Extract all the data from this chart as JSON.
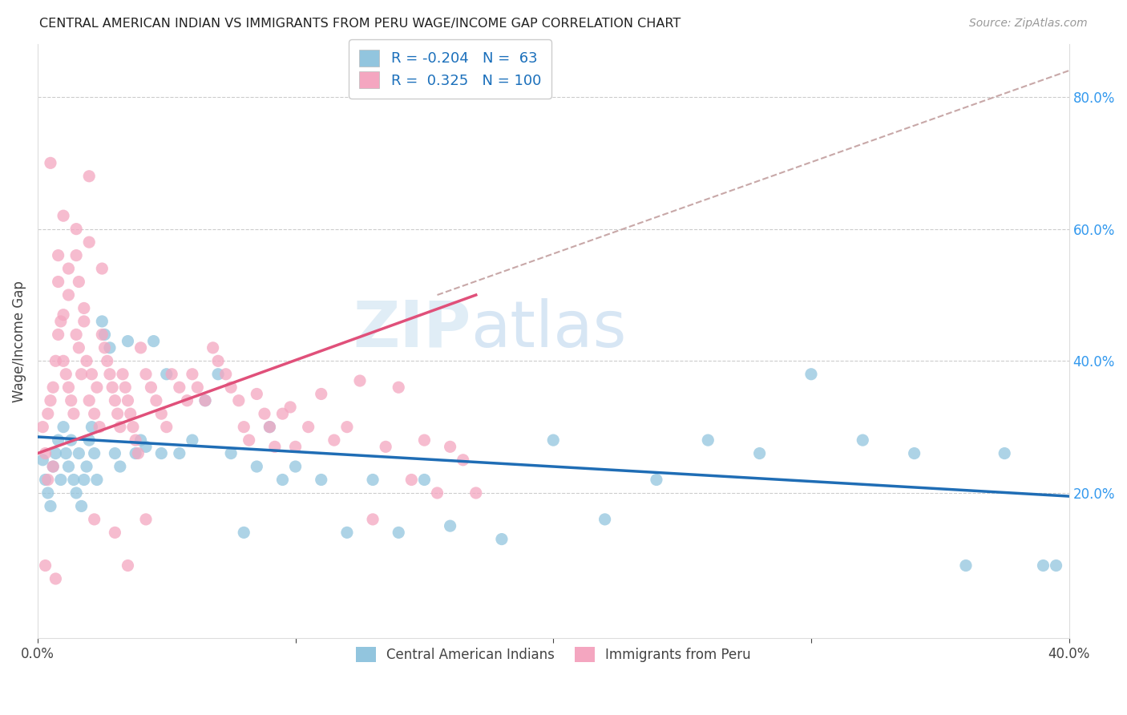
{
  "title": "CENTRAL AMERICAN INDIAN VS IMMIGRANTS FROM PERU WAGE/INCOME GAP CORRELATION CHART",
  "source": "Source: ZipAtlas.com",
  "ylabel": "Wage/Income Gap",
  "right_yticks": [
    "20.0%",
    "40.0%",
    "60.0%",
    "80.0%"
  ],
  "right_ytick_vals": [
    0.2,
    0.4,
    0.6,
    0.8
  ],
  "xlim": [
    0.0,
    0.4
  ],
  "ylim": [
    -0.02,
    0.88
  ],
  "legend_R1": "-0.204",
  "legend_N1": "63",
  "legend_R2": "0.325",
  "legend_N2": "100",
  "color_blue": "#92c5de",
  "color_pink": "#f4a6c0",
  "trendline_blue_color": "#1f6db5",
  "trendline_pink_color": "#e0507a",
  "trendline_dashed_color": "#c8a8a8",
  "watermark_zip": "ZIP",
  "watermark_atlas": "atlas",
  "blue_trendline": [
    0.0,
    0.285,
    0.4,
    0.195
  ],
  "pink_trendline": [
    0.0,
    0.26,
    0.17,
    0.5
  ],
  "dashed_line": [
    0.155,
    0.5,
    0.4,
    0.84
  ],
  "blue_scatter_x": [
    0.002,
    0.003,
    0.004,
    0.005,
    0.006,
    0.007,
    0.008,
    0.009,
    0.01,
    0.011,
    0.012,
    0.013,
    0.014,
    0.015,
    0.016,
    0.017,
    0.018,
    0.019,
    0.02,
    0.021,
    0.022,
    0.023,
    0.025,
    0.026,
    0.028,
    0.03,
    0.032,
    0.035,
    0.038,
    0.04,
    0.042,
    0.045,
    0.048,
    0.05,
    0.055,
    0.06,
    0.065,
    0.07,
    0.075,
    0.08,
    0.085,
    0.09,
    0.095,
    0.1,
    0.11,
    0.12,
    0.13,
    0.14,
    0.15,
    0.16,
    0.18,
    0.2,
    0.22,
    0.24,
    0.26,
    0.28,
    0.3,
    0.32,
    0.34,
    0.36,
    0.375,
    0.39,
    0.395
  ],
  "blue_scatter_y": [
    0.25,
    0.22,
    0.2,
    0.18,
    0.24,
    0.26,
    0.28,
    0.22,
    0.3,
    0.26,
    0.24,
    0.28,
    0.22,
    0.2,
    0.26,
    0.18,
    0.22,
    0.24,
    0.28,
    0.3,
    0.26,
    0.22,
    0.46,
    0.44,
    0.42,
    0.26,
    0.24,
    0.43,
    0.26,
    0.28,
    0.27,
    0.43,
    0.26,
    0.38,
    0.26,
    0.28,
    0.34,
    0.38,
    0.26,
    0.14,
    0.24,
    0.3,
    0.22,
    0.24,
    0.22,
    0.14,
    0.22,
    0.14,
    0.22,
    0.15,
    0.13,
    0.28,
    0.16,
    0.22,
    0.28,
    0.26,
    0.38,
    0.28,
    0.26,
    0.09,
    0.26,
    0.09,
    0.09
  ],
  "pink_scatter_x": [
    0.002,
    0.003,
    0.004,
    0.005,
    0.006,
    0.007,
    0.008,
    0.009,
    0.01,
    0.011,
    0.012,
    0.013,
    0.014,
    0.015,
    0.016,
    0.017,
    0.018,
    0.019,
    0.02,
    0.021,
    0.022,
    0.023,
    0.024,
    0.025,
    0.026,
    0.027,
    0.028,
    0.029,
    0.03,
    0.031,
    0.032,
    0.033,
    0.034,
    0.035,
    0.036,
    0.037,
    0.038,
    0.039,
    0.04,
    0.042,
    0.044,
    0.046,
    0.048,
    0.05,
    0.052,
    0.055,
    0.058,
    0.06,
    0.062,
    0.065,
    0.068,
    0.07,
    0.073,
    0.075,
    0.078,
    0.08,
    0.082,
    0.085,
    0.088,
    0.09,
    0.092,
    0.095,
    0.098,
    0.1,
    0.105,
    0.11,
    0.115,
    0.12,
    0.125,
    0.13,
    0.135,
    0.14,
    0.145,
    0.15,
    0.155,
    0.16,
    0.165,
    0.17,
    0.02,
    0.025,
    0.005,
    0.008,
    0.01,
    0.012,
    0.015,
    0.018,
    0.01,
    0.015,
    0.02,
    0.008,
    0.012,
    0.016,
    0.006,
    0.004,
    0.003,
    0.007,
    0.022,
    0.03,
    0.035,
    0.042
  ],
  "pink_scatter_y": [
    0.3,
    0.26,
    0.32,
    0.34,
    0.36,
    0.4,
    0.44,
    0.46,
    0.4,
    0.38,
    0.36,
    0.34,
    0.32,
    0.44,
    0.42,
    0.38,
    0.46,
    0.4,
    0.34,
    0.38,
    0.32,
    0.36,
    0.3,
    0.44,
    0.42,
    0.4,
    0.38,
    0.36,
    0.34,
    0.32,
    0.3,
    0.38,
    0.36,
    0.34,
    0.32,
    0.3,
    0.28,
    0.26,
    0.42,
    0.38,
    0.36,
    0.34,
    0.32,
    0.3,
    0.38,
    0.36,
    0.34,
    0.38,
    0.36,
    0.34,
    0.42,
    0.4,
    0.38,
    0.36,
    0.34,
    0.3,
    0.28,
    0.35,
    0.32,
    0.3,
    0.27,
    0.32,
    0.33,
    0.27,
    0.3,
    0.35,
    0.28,
    0.3,
    0.37,
    0.16,
    0.27,
    0.36,
    0.22,
    0.28,
    0.2,
    0.27,
    0.25,
    0.2,
    0.68,
    0.54,
    0.7,
    0.52,
    0.47,
    0.5,
    0.56,
    0.48,
    0.62,
    0.6,
    0.58,
    0.56,
    0.54,
    0.52,
    0.24,
    0.22,
    0.09,
    0.07,
    0.16,
    0.14,
    0.09,
    0.16
  ]
}
